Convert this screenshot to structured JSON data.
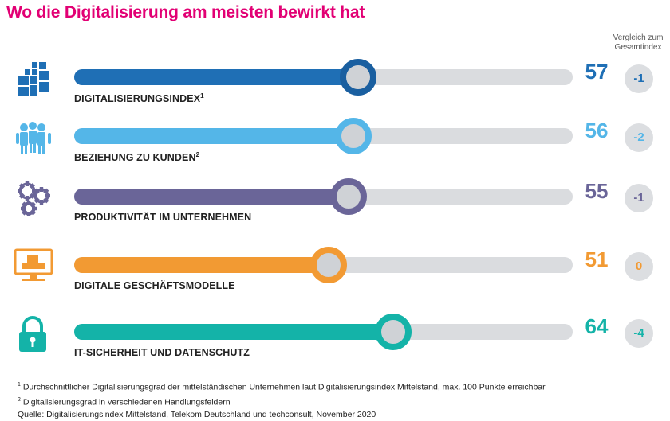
{
  "title": "Wo die Digitalisierung am meisten bewirkt hat",
  "comparison_header": [
    "Vergleich zum",
    "Gesamtindex"
  ],
  "chart_data": {
    "type": "bar",
    "title": "Wo die Digitalisierung am meisten bewirkt hat",
    "xlim": [
      0,
      100
    ],
    "categories": [
      "DIGITALISIERUNGSINDEX",
      "BEZIEHUNG ZU KUNDEN",
      "PRODUKTIVITÄT IM UNTERNEHMEN",
      "DIGITALE GESCHÄFTSMODELLE",
      "IT-SICHERHEIT UND DATENSCHUTZ"
    ],
    "rows": [
      {
        "label": "DIGITALISIERUNGSINDEX",
        "sup": "1",
        "value": 57,
        "delta": "-1",
        "color": "#1f6fb5",
        "knob_color": "#1a5fa0",
        "icon": "digital-blocks-icon"
      },
      {
        "label": "BEZIEHUNG ZU KUNDEN",
        "sup": "2",
        "value": 56,
        "delta": "-2",
        "color": "#54b6e8",
        "knob_color": "#54b6e8",
        "icon": "customers-group-icon"
      },
      {
        "label": "PRODUKTIVITÄT IM UNTERNEHMEN",
        "sup": "",
        "value": 55,
        "delta": "-1",
        "color": "#6a6598",
        "knob_color": "#6a6598",
        "icon": "gears-icon"
      },
      {
        "label": "DIGITALE GESCHÄFTSMODELLE",
        "sup": "",
        "value": 51,
        "delta": "0",
        "color": "#f29a33",
        "knob_color": "#f29a33",
        "icon": "monitor-icon"
      },
      {
        "label": "IT-SICHERHEIT UND DATENSCHUTZ",
        "sup": "",
        "value": 64,
        "delta": "-4",
        "color": "#14b3a8",
        "knob_color": "#14b3a8",
        "icon": "padlock-icon"
      }
    ]
  },
  "footnotes": [
    {
      "sup": "1",
      "text": " Durchschnittlicher Digitalisierungsgrad der mittelständischen Unternehmen laut Digitalisierungsindex Mittelstand, max. 100 Punkte erreichbar"
    },
    {
      "sup": "2",
      "text": " Digitalisierungsgrad in verschiedenen Handlungsfeldern"
    },
    {
      "sup": "",
      "text": "Quelle: Digitalisierungsindex Mittelstand, Telekom Deutschland und techconsult, November 2020"
    }
  ]
}
